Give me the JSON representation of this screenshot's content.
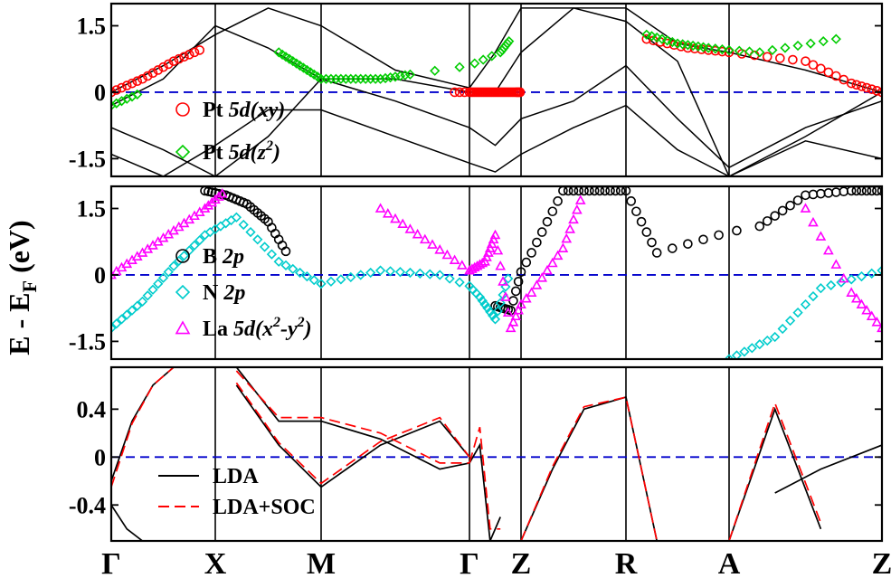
{
  "chart_data": {
    "type": "line",
    "ylabel": {
      "main": "E - E",
      "sub": "F",
      "unit": " (eV)"
    },
    "kpoints": [
      "Γ",
      "X",
      "M",
      "Γ",
      "Z",
      "R",
      "A",
      "Z"
    ],
    "fermi_level": 0,
    "panels": [
      {
        "id": "top",
        "ylim": [
          -1.9,
          2.0
        ],
        "yticks": [
          1.5,
          0,
          -1.5
        ],
        "ytick_labels": [
          "1.5",
          "0",
          "-1.5"
        ],
        "legend": [
          {
            "label_plain": "Pt ",
            "label_italic": "5d(xy)",
            "marker": "circle",
            "color": "#ff0000"
          },
          {
            "label_plain": "Pt ",
            "label_italic": "5d(z",
            "label_sup": "2",
            "label_tail": ")",
            "marker": "diamond",
            "color": "#00cc00"
          }
        ],
        "bands": [
          {
            "name": "band-1",
            "x": [
              0,
              0.5,
              1,
              1.5,
              2,
              2.5,
              3,
              3.5,
              4,
              4.5,
              5,
              5.5,
              6,
              6.5,
              7
            ],
            "y": [
              0,
              0.6,
              1.3,
              1.9,
              1.5,
              0.5,
              0.1,
              0.9,
              1.9,
              1.9,
              1.9,
              1.1,
              0.9,
              0.5,
              0
            ]
          },
          {
            "name": "band-2",
            "x": [
              0,
              0.5,
              1,
              1.5,
              2,
              2.5,
              3,
              3.5,
              4,
              4.5,
              5,
              5.5,
              6,
              6.5,
              7
            ],
            "y": [
              -0.3,
              0.3,
              1.5,
              1.0,
              0.3,
              0.3,
              0.0,
              0.0,
              0.9,
              1.9,
              1.6,
              0.7,
              -1.9,
              -1.0,
              0
            ]
          },
          {
            "name": "band-3",
            "x": [
              0,
              0.5,
              1,
              1.5,
              2,
              2.5,
              3,
              3.5,
              4,
              4.5,
              5,
              5.5,
              6,
              6.5,
              7
            ],
            "y": [
              -0.8,
              -1.3,
              -1.9,
              -1.0,
              0.3,
              -0.2,
              -0.8,
              -1.2,
              -0.6,
              -0.2,
              0.6,
              -0.6,
              -1.7,
              -0.8,
              -0.2
            ]
          },
          {
            "name": "band-4",
            "x": [
              0,
              0.5,
              1,
              1.5,
              2,
              2.5,
              3,
              3.5,
              4,
              4.5,
              5,
              5.5,
              6,
              6.5,
              7
            ],
            "y": [
              -1.4,
              -1.9,
              -1.2,
              -0.4,
              -0.4,
              -1.0,
              -1.6,
              -1.8,
              -1.4,
              -0.8,
              -0.3,
              -1.3,
              -1.9,
              -1.1,
              -1.5
            ]
          }
        ],
        "projections": [
          {
            "name": "pt-dxy",
            "color": "#ff0000",
            "marker": "circle",
            "x": [
              0,
              0.3,
              0.6,
              0.9,
              2.9,
              3.1,
              3.3,
              3.5,
              3.7,
              3.9,
              4.0,
              5.2,
              5.6,
              6.0,
              6.5,
              6.8,
              7.0
            ],
            "y": [
              0,
              0.3,
              0.7,
              1.0,
              0,
              0,
              0,
              0,
              0,
              0,
              0,
              1.2,
              1.0,
              0.9,
              0.7,
              0.2,
              0
            ]
          },
          {
            "name": "pt-dz2",
            "color": "#00cc00",
            "marker": "diamond",
            "x": [
              0,
              0.3,
              1.6,
              1.8,
              2.0,
              2.2,
              2.4,
              2.6,
              3.6,
              3.8,
              5.2,
              5.5,
              5.8,
              6.2,
              6.7
            ],
            "y": [
              -0.3,
              0.0,
              0.9,
              0.6,
              0.3,
              0.3,
              0.3,
              0.4,
              0.9,
              1.2,
              1.3,
              1.1,
              1.0,
              0.9,
              1.2
            ]
          }
        ]
      },
      {
        "id": "middle",
        "ylim": [
          -1.9,
          2.0
        ],
        "yticks": [
          1.5,
          0,
          -1.5
        ],
        "ytick_labels": [
          "1.5",
          "0",
          "-1.5"
        ],
        "legend": [
          {
            "label_plain": "B ",
            "label_italic": "2p",
            "marker": "circle",
            "color": "#000000"
          },
          {
            "label_plain": "N ",
            "label_italic": "2p",
            "marker": "diamond",
            "color": "#00cccc"
          },
          {
            "label_plain": "La ",
            "label_italic": "5d(x",
            "label_sup": "2",
            "label_tail": "-y",
            "label_sup2": "2",
            "label_tail2": ")",
            "marker": "triangle",
            "color": "#ff00ff"
          }
        ],
        "projections": [
          {
            "name": "b-2p",
            "color": "#000000",
            "marker": "circle",
            "x": [
              0.9,
              1.1,
              1.3,
              1.5,
              1.7,
              3.5,
              3.8,
              4.1,
              4.4,
              4.7,
              5.0,
              5.3,
              6.2,
              6.5,
              6.8,
              7.0
            ],
            "y": [
              1.9,
              1.8,
              1.6,
              1.2,
              0.4,
              -0.7,
              -0.8,
              0.5,
              1.9,
              1.9,
              1.9,
              0.5,
              1.1,
              1.8,
              1.9,
              1.9
            ]
          },
          {
            "name": "n-2p",
            "color": "#00cccc",
            "marker": "diamond",
            "x": [
              0,
              0.3,
              0.6,
              0.9,
              1.2,
              1.6,
              2.0,
              2.4,
              2.8,
              3.2,
              3.5,
              3.8,
              6.0,
              6.3,
              6.6,
              7.0
            ],
            "y": [
              -1.2,
              -0.6,
              0.2,
              0.9,
              1.3,
              0.3,
              -0.2,
              0.1,
              0.0,
              -0.5,
              -1.0,
              0.1,
              -1.9,
              -1.4,
              -0.3,
              0.1
            ]
          },
          {
            "name": "la-d",
            "color": "#ff00ff",
            "marker": "triangle",
            "x": [
              0,
              0.3,
              0.6,
              0.9,
              1.1,
              2.4,
              2.7,
              3.0,
              3.3,
              3.5,
              3.8,
              4.1,
              4.4,
              4.6,
              6.5,
              6.8,
              7.0
            ],
            "y": [
              0,
              0.5,
              1.0,
              1.5,
              1.9,
              1.5,
              0.8,
              0.1,
              0.3,
              0.9,
              -1.2,
              -0.4,
              0.6,
              1.9,
              1.5,
              -0.4,
              -1.2
            ]
          }
        ]
      },
      {
        "id": "bottom",
        "ylim": [
          -0.7,
          0.75
        ],
        "yticks": [
          0.4,
          0,
          -0.4
        ],
        "ytick_labels": [
          "0.4",
          "0",
          "-0.4"
        ],
        "legend": [
          {
            "label": "LDA",
            "style": "solid",
            "color": "#000000"
          },
          {
            "label": "LDA+SOC",
            "style": "dashed",
            "color": "#ff0000"
          }
        ],
        "series": [
          {
            "name": "LDA",
            "color": "#000000",
            "style": "solid",
            "bands": [
              {
                "x": [
                  0,
                  0.2,
                  0.4,
                  0.6
                ],
                "y": [
                  -0.2,
                  0.3,
                  0.6,
                  0.75
                ]
              },
              {
                "x": [
                  0,
                  0.15,
                  0.3
                ],
                "y": [
                  -0.4,
                  -0.6,
                  -0.7
                ]
              },
              {
                "x": [
                  1.2,
                  1.6,
                  2.0,
                  2.4,
                  2.8,
                  3.0
                ],
                "y": [
                  0.75,
                  0.3,
                  0.3,
                  0.15,
                  -0.1,
                  -0.05
                ]
              },
              {
                "x": [
                  1.2,
                  1.6,
                  2.0,
                  2.4,
                  2.8,
                  3.0
                ],
                "y": [
                  0.6,
                  0.1,
                  -0.25,
                  0.1,
                  0.3,
                  0.0
                ]
              },
              {
                "x": [
                  3.0,
                  3.2,
                  3.4,
                  3.6
                ],
                "y": [
                  -0.05,
                  0.1,
                  -0.7,
                  -0.5
                ]
              },
              {
                "x": [
                  4.0,
                  4.3,
                  4.6,
                  5.0,
                  5.3
                ],
                "y": [
                  -0.7,
                  -0.1,
                  0.4,
                  0.5,
                  -0.7
                ]
              },
              {
                "x": [
                  6.0,
                  6.3,
                  6.6
                ],
                "y": [
                  -0.7,
                  0.4,
                  -0.6
                ]
              },
              {
                "x": [
                  6.3,
                  6.6,
                  7.0
                ],
                "y": [
                  -0.3,
                  -0.1,
                  0.1
                ]
              }
            ]
          },
          {
            "name": "LDA+SOC",
            "color": "#ff0000",
            "style": "dashed",
            "bands": [
              {
                "x": [
                  0,
                  0.2,
                  0.4,
                  0.6
                ],
                "y": [
                  -0.25,
                  0.28,
                  0.6,
                  0.75
                ]
              },
              {
                "x": [
                  1.2,
                  1.6,
                  2.0,
                  2.4,
                  2.8,
                  3.0
                ],
                "y": [
                  0.72,
                  0.33,
                  0.33,
                  0.2,
                  -0.05,
                  -0.05
                ]
              },
              {
                "x": [
                  1.2,
                  1.6,
                  2.0,
                  2.4,
                  2.8,
                  3.0
                ],
                "y": [
                  0.62,
                  0.12,
                  -0.22,
                  0.13,
                  0.33,
                  0.0
                ]
              },
              {
                "x": [
                  3.0,
                  3.2,
                  3.4,
                  3.6
                ],
                "y": [
                  -0.05,
                  0.25,
                  -0.6,
                  -0.6
                ]
              },
              {
                "x": [
                  4.0,
                  4.3,
                  4.6,
                  5.0,
                  5.3
                ],
                "y": [
                  -0.7,
                  -0.08,
                  0.42,
                  0.5,
                  -0.7
                ]
              },
              {
                "x": [
                  6.0,
                  6.3,
                  6.6
                ],
                "y": [
                  -0.7,
                  0.45,
                  -0.55
                ]
              }
            ]
          }
        ]
      }
    ]
  }
}
